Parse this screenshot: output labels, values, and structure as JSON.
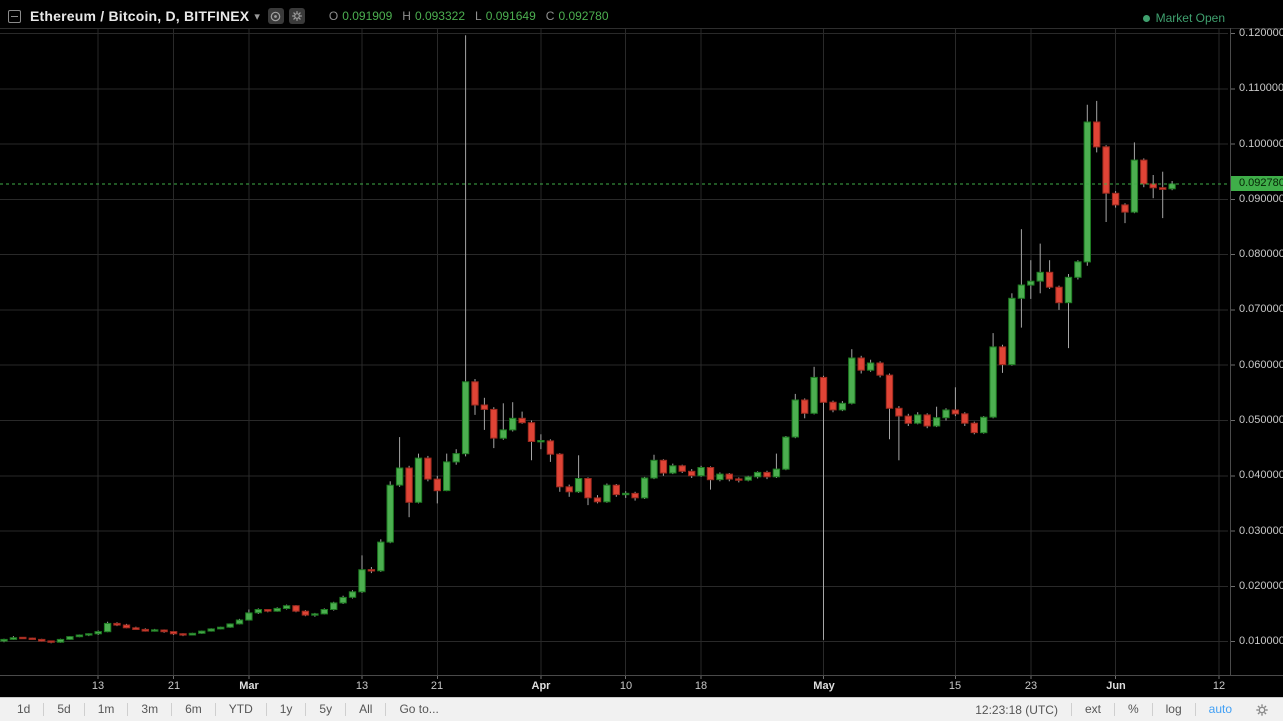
{
  "header": {
    "symbol": "Ethereum / Bitcoin, D, BITFINEX",
    "ohlc": {
      "o_label": "O",
      "o": "0.091909",
      "h_label": "H",
      "h": "0.093322",
      "l_label": "L",
      "l": "0.091649",
      "c_label": "C",
      "c": "0.092780"
    }
  },
  "market_status": {
    "label": "Market Open"
  },
  "price_axis": {
    "ticks": [
      "0.120000",
      "0.110000",
      "0.100000",
      "0.090000",
      "0.080000",
      "0.070000",
      "0.060000",
      "0.050000",
      "0.040000",
      "0.030000",
      "0.020000",
      "0.010000"
    ],
    "last_price": "0.092780"
  },
  "time_axis": {
    "ticks": [
      {
        "label": "13",
        "index": 10
      },
      {
        "label": "21",
        "index": 18
      },
      {
        "label": "Mar",
        "index": 26,
        "major": true
      },
      {
        "label": "13",
        "index": 38
      },
      {
        "label": "21",
        "index": 46
      },
      {
        "label": "Apr",
        "index": 57,
        "major": true
      },
      {
        "label": "10",
        "index": 66
      },
      {
        "label": "18",
        "index": 74
      },
      {
        "label": "May",
        "index": 87,
        "major": true
      },
      {
        "label": "15",
        "index": 101
      },
      {
        "label": "23",
        "index": 109
      },
      {
        "label": "Jun",
        "index": 118,
        "major": true
      },
      {
        "label": "12",
        "index": 129
      }
    ]
  },
  "toolbar": {
    "ranges": [
      "1d",
      "5d",
      "1m",
      "3m",
      "6m",
      "YTD",
      "1y",
      "5y",
      "All"
    ],
    "goto": "Go to...",
    "clock": "12:23:18 (UTC)",
    "modes": [
      "ext",
      "%",
      "log",
      "auto"
    ],
    "active_mode": "auto"
  },
  "colors": {
    "background": "#000000",
    "grid": "#292929",
    "border": "#2e2e2e",
    "axis_sep": "#4a4a4a",
    "up": "#4caf50",
    "up_border": "#1e7b22",
    "down": "#df4436",
    "down_border": "#9c2a1f",
    "wick": "#a6a6a6",
    "accent": "#3fae49",
    "tick": "#6e6e6e"
  },
  "chart_data": {
    "type": "candlestick",
    "title": "Ethereum / Bitcoin, D, BITFINEX",
    "interval": "D",
    "price_range": [
      0.01,
      0.12
    ],
    "legend_position": "top-left",
    "grid": true,
    "last_close": 0.09278,
    "candles": [
      {
        "d": "Feb 3",
        "o": 0.0101,
        "h": 0.0105,
        "l": 0.0099,
        "c": 0.0104
      },
      {
        "d": "Feb 4",
        "o": 0.0104,
        "h": 0.011,
        "l": 0.0103,
        "c": 0.0107
      },
      {
        "d": "Feb 5",
        "o": 0.0107,
        "h": 0.0108,
        "l": 0.0105,
        "c": 0.0106
      },
      {
        "d": "Feb 6",
        "o": 0.0106,
        "h": 0.0107,
        "l": 0.0103,
        "c": 0.0104
      },
      {
        "d": "Feb 7",
        "o": 0.0104,
        "h": 0.0105,
        "l": 0.01,
        "c": 0.0101
      },
      {
        "d": "Feb 8",
        "o": 0.0101,
        "h": 0.0102,
        "l": 0.0097,
        "c": 0.0099
      },
      {
        "d": "Feb 9",
        "o": 0.0099,
        "h": 0.0105,
        "l": 0.0098,
        "c": 0.0104
      },
      {
        "d": "Feb 10",
        "o": 0.0104,
        "h": 0.011,
        "l": 0.0103,
        "c": 0.0109
      },
      {
        "d": "Feb 11",
        "o": 0.0109,
        "h": 0.0113,
        "l": 0.0108,
        "c": 0.0112
      },
      {
        "d": "Feb 12",
        "o": 0.0112,
        "h": 0.0115,
        "l": 0.011,
        "c": 0.0114
      },
      {
        "d": "Feb 13",
        "o": 0.0114,
        "h": 0.012,
        "l": 0.0112,
        "c": 0.0118
      },
      {
        "d": "Feb 14",
        "o": 0.0118,
        "h": 0.0136,
        "l": 0.0117,
        "c": 0.0133
      },
      {
        "d": "Feb 15",
        "o": 0.0133,
        "h": 0.0135,
        "l": 0.0128,
        "c": 0.013
      },
      {
        "d": "Feb 16",
        "o": 0.013,
        "h": 0.0132,
        "l": 0.0124,
        "c": 0.0125
      },
      {
        "d": "Feb 17",
        "o": 0.0125,
        "h": 0.0127,
        "l": 0.0121,
        "c": 0.0122
      },
      {
        "d": "Feb 18",
        "o": 0.0122,
        "h": 0.0124,
        "l": 0.0118,
        "c": 0.0119
      },
      {
        "d": "Feb 19",
        "o": 0.0119,
        "h": 0.0123,
        "l": 0.0118,
        "c": 0.0121
      },
      {
        "d": "Feb 20",
        "o": 0.0121,
        "h": 0.0122,
        "l": 0.0116,
        "c": 0.0118
      },
      {
        "d": "Feb 21",
        "o": 0.0118,
        "h": 0.0119,
        "l": 0.0112,
        "c": 0.0114
      },
      {
        "d": "Feb 22",
        "o": 0.0114,
        "h": 0.0115,
        "l": 0.011,
        "c": 0.0112
      },
      {
        "d": "Feb 23",
        "o": 0.0112,
        "h": 0.0116,
        "l": 0.0111,
        "c": 0.0115
      },
      {
        "d": "Feb 24",
        "o": 0.0115,
        "h": 0.012,
        "l": 0.0114,
        "c": 0.0119
      },
      {
        "d": "Feb 25",
        "o": 0.0119,
        "h": 0.0124,
        "l": 0.0118,
        "c": 0.0123
      },
      {
        "d": "Feb 26",
        "o": 0.0123,
        "h": 0.0127,
        "l": 0.0122,
        "c": 0.0126
      },
      {
        "d": "Feb 27",
        "o": 0.0126,
        "h": 0.0133,
        "l": 0.0125,
        "c": 0.0132
      },
      {
        "d": "Feb 28",
        "o": 0.0132,
        "h": 0.0141,
        "l": 0.0131,
        "c": 0.0139
      },
      {
        "d": "Mar 1",
        "o": 0.0139,
        "h": 0.0158,
        "l": 0.0138,
        "c": 0.0152
      },
      {
        "d": "Mar 2",
        "o": 0.0152,
        "h": 0.016,
        "l": 0.015,
        "c": 0.0158
      },
      {
        "d": "Mar 3",
        "o": 0.0158,
        "h": 0.0159,
        "l": 0.0153,
        "c": 0.0155
      },
      {
        "d": "Mar 4",
        "o": 0.0155,
        "h": 0.0162,
        "l": 0.0154,
        "c": 0.016
      },
      {
        "d": "Mar 5",
        "o": 0.016,
        "h": 0.0167,
        "l": 0.0158,
        "c": 0.0165
      },
      {
        "d": "Mar 6",
        "o": 0.0165,
        "h": 0.0166,
        "l": 0.0153,
        "c": 0.0155
      },
      {
        "d": "Mar 7",
        "o": 0.0155,
        "h": 0.0157,
        "l": 0.0146,
        "c": 0.0148
      },
      {
        "d": "Mar 8",
        "o": 0.0148,
        "h": 0.0152,
        "l": 0.0145,
        "c": 0.015
      },
      {
        "d": "Mar 9",
        "o": 0.015,
        "h": 0.016,
        "l": 0.0149,
        "c": 0.0158
      },
      {
        "d": "Mar 10",
        "o": 0.0158,
        "h": 0.0172,
        "l": 0.0156,
        "c": 0.017
      },
      {
        "d": "Mar 11",
        "o": 0.017,
        "h": 0.0183,
        "l": 0.0168,
        "c": 0.018
      },
      {
        "d": "Mar 12",
        "o": 0.018,
        "h": 0.0193,
        "l": 0.0178,
        "c": 0.019
      },
      {
        "d": "Mar 13",
        "o": 0.019,
        "h": 0.0256,
        "l": 0.0188,
        "c": 0.023
      },
      {
        "d": "Mar 14",
        "o": 0.023,
        "h": 0.0235,
        "l": 0.0224,
        "c": 0.0228
      },
      {
        "d": "Mar 15",
        "o": 0.0228,
        "h": 0.0285,
        "l": 0.0226,
        "c": 0.028
      },
      {
        "d": "Mar 16",
        "o": 0.028,
        "h": 0.039,
        "l": 0.0278,
        "c": 0.0383
      },
      {
        "d": "Mar 17",
        "o": 0.0383,
        "h": 0.047,
        "l": 0.038,
        "c": 0.0414
      },
      {
        "d": "Mar 18",
        "o": 0.0414,
        "h": 0.0418,
        "l": 0.0325,
        "c": 0.0352
      },
      {
        "d": "Mar 19",
        "o": 0.0352,
        "h": 0.044,
        "l": 0.035,
        "c": 0.0432
      },
      {
        "d": "Mar 20",
        "o": 0.0432,
        "h": 0.0436,
        "l": 0.039,
        "c": 0.0394
      },
      {
        "d": "Mar 21",
        "o": 0.0394,
        "h": 0.04,
        "l": 0.035,
        "c": 0.0373
      },
      {
        "d": "Mar 22",
        "o": 0.0373,
        "h": 0.044,
        "l": 0.0372,
        "c": 0.0425
      },
      {
        "d": "Mar 23",
        "o": 0.0425,
        "h": 0.0448,
        "l": 0.042,
        "c": 0.044
      },
      {
        "d": "Mar 24",
        "o": 0.044,
        "h": 0.1197,
        "l": 0.0435,
        "c": 0.057
      },
      {
        "d": "Mar 25",
        "o": 0.057,
        "h": 0.0575,
        "l": 0.051,
        "c": 0.0528
      },
      {
        "d": "Mar 26",
        "o": 0.0528,
        "h": 0.0541,
        "l": 0.0483,
        "c": 0.052
      },
      {
        "d": "Mar 27",
        "o": 0.052,
        "h": 0.0524,
        "l": 0.045,
        "c": 0.0468
      },
      {
        "d": "Mar 28",
        "o": 0.0468,
        "h": 0.0531,
        "l": 0.0465,
        "c": 0.0483
      },
      {
        "d": "Mar 29",
        "o": 0.0483,
        "h": 0.0533,
        "l": 0.048,
        "c": 0.0504
      },
      {
        "d": "Mar 30",
        "o": 0.0504,
        "h": 0.0516,
        "l": 0.0494,
        "c": 0.0496
      },
      {
        "d": "Mar 31",
        "o": 0.0496,
        "h": 0.05,
        "l": 0.0428,
        "c": 0.0462
      },
      {
        "d": "Apr 1",
        "o": 0.0462,
        "h": 0.0475,
        "l": 0.0448,
        "c": 0.0463
      },
      {
        "d": "Apr 2",
        "o": 0.0463,
        "h": 0.0466,
        "l": 0.0425,
        "c": 0.0439
      },
      {
        "d": "Apr 3",
        "o": 0.0439,
        "h": 0.0441,
        "l": 0.0371,
        "c": 0.038
      },
      {
        "d": "Apr 4",
        "o": 0.038,
        "h": 0.0384,
        "l": 0.0362,
        "c": 0.0371
      },
      {
        "d": "Apr 5",
        "o": 0.0371,
        "h": 0.0437,
        "l": 0.0369,
        "c": 0.0395
      },
      {
        "d": "Apr 6",
        "o": 0.0395,
        "h": 0.0397,
        "l": 0.0347,
        "c": 0.036
      },
      {
        "d": "Apr 7",
        "o": 0.036,
        "h": 0.0365,
        "l": 0.035,
        "c": 0.0353
      },
      {
        "d": "Apr 8",
        "o": 0.0353,
        "h": 0.0386,
        "l": 0.0351,
        "c": 0.0383
      },
      {
        "d": "Apr 9",
        "o": 0.0383,
        "h": 0.0385,
        "l": 0.0362,
        "c": 0.0366
      },
      {
        "d": "Apr 10",
        "o": 0.0366,
        "h": 0.0372,
        "l": 0.036,
        "c": 0.0368
      },
      {
        "d": "Apr 11",
        "o": 0.0368,
        "h": 0.0371,
        "l": 0.0355,
        "c": 0.036
      },
      {
        "d": "Apr 12",
        "o": 0.036,
        "h": 0.0398,
        "l": 0.0358,
        "c": 0.0396
      },
      {
        "d": "Apr 13",
        "o": 0.0396,
        "h": 0.0438,
        "l": 0.0394,
        "c": 0.0428
      },
      {
        "d": "Apr 14",
        "o": 0.0428,
        "h": 0.043,
        "l": 0.04,
        "c": 0.0405
      },
      {
        "d": "Apr 15",
        "o": 0.0405,
        "h": 0.0422,
        "l": 0.0403,
        "c": 0.0418
      },
      {
        "d": "Apr 16",
        "o": 0.0418,
        "h": 0.042,
        "l": 0.0405,
        "c": 0.0408
      },
      {
        "d": "Apr 17",
        "o": 0.0408,
        "h": 0.0412,
        "l": 0.0396,
        "c": 0.04
      },
      {
        "d": "Apr 18",
        "o": 0.04,
        "h": 0.0418,
        "l": 0.0398,
        "c": 0.0415
      },
      {
        "d": "Apr 19",
        "o": 0.0415,
        "h": 0.0417,
        "l": 0.0375,
        "c": 0.0393
      },
      {
        "d": "Apr 20",
        "o": 0.0393,
        "h": 0.0406,
        "l": 0.039,
        "c": 0.0403
      },
      {
        "d": "Apr 21",
        "o": 0.0403,
        "h": 0.0405,
        "l": 0.039,
        "c": 0.0394
      },
      {
        "d": "Apr 22",
        "o": 0.0394,
        "h": 0.0397,
        "l": 0.0388,
        "c": 0.0392
      },
      {
        "d": "Apr 23",
        "o": 0.0392,
        "h": 0.04,
        "l": 0.039,
        "c": 0.0398
      },
      {
        "d": "Apr 24",
        "o": 0.0398,
        "h": 0.0408,
        "l": 0.0395,
        "c": 0.0406
      },
      {
        "d": "Apr 25",
        "o": 0.0406,
        "h": 0.0409,
        "l": 0.0394,
        "c": 0.0398
      },
      {
        "d": "Apr 26",
        "o": 0.0398,
        "h": 0.044,
        "l": 0.0396,
        "c": 0.0412
      },
      {
        "d": "Apr 27",
        "o": 0.0412,
        "h": 0.0472,
        "l": 0.041,
        "c": 0.047
      },
      {
        "d": "Apr 28",
        "o": 0.047,
        "h": 0.0548,
        "l": 0.0468,
        "c": 0.0537
      },
      {
        "d": "Apr 29",
        "o": 0.0537,
        "h": 0.054,
        "l": 0.0504,
        "c": 0.0513
      },
      {
        "d": "Apr 30",
        "o": 0.0513,
        "h": 0.0597,
        "l": 0.0511,
        "c": 0.0578
      },
      {
        "d": "May 1",
        "o": 0.0578,
        "h": 0.0581,
        "l": 0.0103,
        "c": 0.0533
      },
      {
        "d": "May 2",
        "o": 0.0533,
        "h": 0.0536,
        "l": 0.0515,
        "c": 0.0519
      },
      {
        "d": "May 3",
        "o": 0.0519,
        "h": 0.0535,
        "l": 0.0517,
        "c": 0.0531
      },
      {
        "d": "May 4",
        "o": 0.0531,
        "h": 0.0629,
        "l": 0.0529,
        "c": 0.0613
      },
      {
        "d": "May 5",
        "o": 0.0613,
        "h": 0.0617,
        "l": 0.0585,
        "c": 0.0591
      },
      {
        "d": "May 6",
        "o": 0.0591,
        "h": 0.061,
        "l": 0.0588,
        "c": 0.0604
      },
      {
        "d": "May 7",
        "o": 0.0604,
        "h": 0.0607,
        "l": 0.0578,
        "c": 0.0582
      },
      {
        "d": "May 8",
        "o": 0.0582,
        "h": 0.0585,
        "l": 0.0466,
        "c": 0.0522
      },
      {
        "d": "May 9",
        "o": 0.0522,
        "h": 0.0526,
        "l": 0.0428,
        "c": 0.0508
      },
      {
        "d": "May 10",
        "o": 0.0508,
        "h": 0.0512,
        "l": 0.049,
        "c": 0.0495
      },
      {
        "d": "May 11",
        "o": 0.0495,
        "h": 0.0515,
        "l": 0.0493,
        "c": 0.051
      },
      {
        "d": "May 12",
        "o": 0.051,
        "h": 0.0513,
        "l": 0.0486,
        "c": 0.049
      },
      {
        "d": "May 13",
        "o": 0.049,
        "h": 0.0525,
        "l": 0.0488,
        "c": 0.0505
      },
      {
        "d": "May 14",
        "o": 0.0505,
        "h": 0.0522,
        "l": 0.05,
        "c": 0.0519
      },
      {
        "d": "May 15",
        "o": 0.0519,
        "h": 0.056,
        "l": 0.0508,
        "c": 0.0512
      },
      {
        "d": "May 16",
        "o": 0.0512,
        "h": 0.0515,
        "l": 0.049,
        "c": 0.0495
      },
      {
        "d": "May 17",
        "o": 0.0495,
        "h": 0.0498,
        "l": 0.0475,
        "c": 0.0478
      },
      {
        "d": "May 18",
        "o": 0.0478,
        "h": 0.0508,
        "l": 0.0476,
        "c": 0.0506
      },
      {
        "d": "May 19",
        "o": 0.0506,
        "h": 0.0658,
        "l": 0.0504,
        "c": 0.0633
      },
      {
        "d": "May 20",
        "o": 0.0633,
        "h": 0.0637,
        "l": 0.0586,
        "c": 0.0601
      },
      {
        "d": "May 21",
        "o": 0.0601,
        "h": 0.073,
        "l": 0.0599,
        "c": 0.0721
      },
      {
        "d": "May 22",
        "o": 0.0721,
        "h": 0.0846,
        "l": 0.0668,
        "c": 0.0745
      },
      {
        "d": "May 23",
        "o": 0.0745,
        "h": 0.079,
        "l": 0.072,
        "c": 0.0752
      },
      {
        "d": "May 24",
        "o": 0.0752,
        "h": 0.082,
        "l": 0.073,
        "c": 0.0768
      },
      {
        "d": "May 25",
        "o": 0.0768,
        "h": 0.079,
        "l": 0.0738,
        "c": 0.0741
      },
      {
        "d": "May 26",
        "o": 0.0741,
        "h": 0.0744,
        "l": 0.07,
        "c": 0.0713
      },
      {
        "d": "May 27",
        "o": 0.0713,
        "h": 0.0765,
        "l": 0.0631,
        "c": 0.0759
      },
      {
        "d": "May 28",
        "o": 0.0759,
        "h": 0.079,
        "l": 0.0755,
        "c": 0.0787
      },
      {
        "d": "May 29",
        "o": 0.0787,
        "h": 0.1071,
        "l": 0.078,
        "c": 0.104
      },
      {
        "d": "May 30",
        "o": 0.104,
        "h": 0.1078,
        "l": 0.0985,
        "c": 0.0995
      },
      {
        "d": "May 31",
        "o": 0.0995,
        "h": 0.0998,
        "l": 0.0859,
        "c": 0.0911
      },
      {
        "d": "Jun 1",
        "o": 0.0911,
        "h": 0.0915,
        "l": 0.0885,
        "c": 0.089
      },
      {
        "d": "Jun 2",
        "o": 0.089,
        "h": 0.0893,
        "l": 0.0857,
        "c": 0.0877
      },
      {
        "d": "Jun 3",
        "o": 0.0877,
        "h": 0.1003,
        "l": 0.0875,
        "c": 0.0971
      },
      {
        "d": "Jun 4",
        "o": 0.0971,
        "h": 0.0974,
        "l": 0.0922,
        "c": 0.0928
      },
      {
        "d": "Jun 5",
        "o": 0.0928,
        "h": 0.0944,
        "l": 0.0902,
        "c": 0.0921
      },
      {
        "d": "Jun 6",
        "o": 0.0921,
        "h": 0.095,
        "l": 0.0866,
        "c": 0.0918
      },
      {
        "d": "Jun 7",
        "o": 0.091909,
        "h": 0.093322,
        "l": 0.091649,
        "c": 0.09278
      }
    ]
  }
}
